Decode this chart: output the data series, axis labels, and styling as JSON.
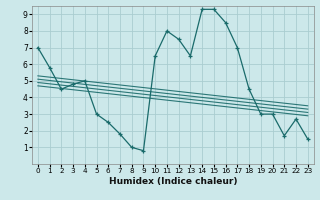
{
  "xlabel": "Humidex (Indice chaleur)",
  "ylabel": "",
  "bg_color": "#cce8ea",
  "grid_color": "#aacdd0",
  "line_color": "#1a6b6b",
  "xlim": [
    -0.5,
    23.5
  ],
  "ylim": [
    0,
    9.5
  ],
  "xticks": [
    0,
    1,
    2,
    3,
    4,
    5,
    6,
    7,
    8,
    9,
    10,
    11,
    12,
    13,
    14,
    15,
    16,
    17,
    18,
    19,
    20,
    21,
    22,
    23
  ],
  "yticks": [
    1,
    2,
    3,
    4,
    5,
    6,
    7,
    8,
    9
  ],
  "curve_x": [
    0,
    1,
    2,
    3,
    4,
    5,
    6,
    7,
    8,
    9,
    10,
    11,
    12,
    13,
    14,
    15,
    16,
    17,
    18,
    19,
    20,
    21,
    22,
    23
  ],
  "curve_y": [
    7.0,
    5.8,
    4.5,
    4.8,
    5.0,
    3.0,
    2.5,
    1.8,
    1.0,
    0.8,
    6.5,
    8.0,
    7.5,
    6.5,
    9.3,
    9.3,
    8.5,
    7.0,
    4.5,
    3.0,
    3.0,
    1.7,
    2.7,
    1.5
  ],
  "reg_lines": [
    {
      "x": [
        0,
        23
      ],
      "y": [
        5.3,
        3.5
      ]
    },
    {
      "x": [
        0,
        23
      ],
      "y": [
        5.1,
        3.3
      ]
    },
    {
      "x": [
        0,
        23
      ],
      "y": [
        4.9,
        3.1
      ]
    },
    {
      "x": [
        0,
        23
      ],
      "y": [
        4.7,
        2.9
      ]
    }
  ]
}
